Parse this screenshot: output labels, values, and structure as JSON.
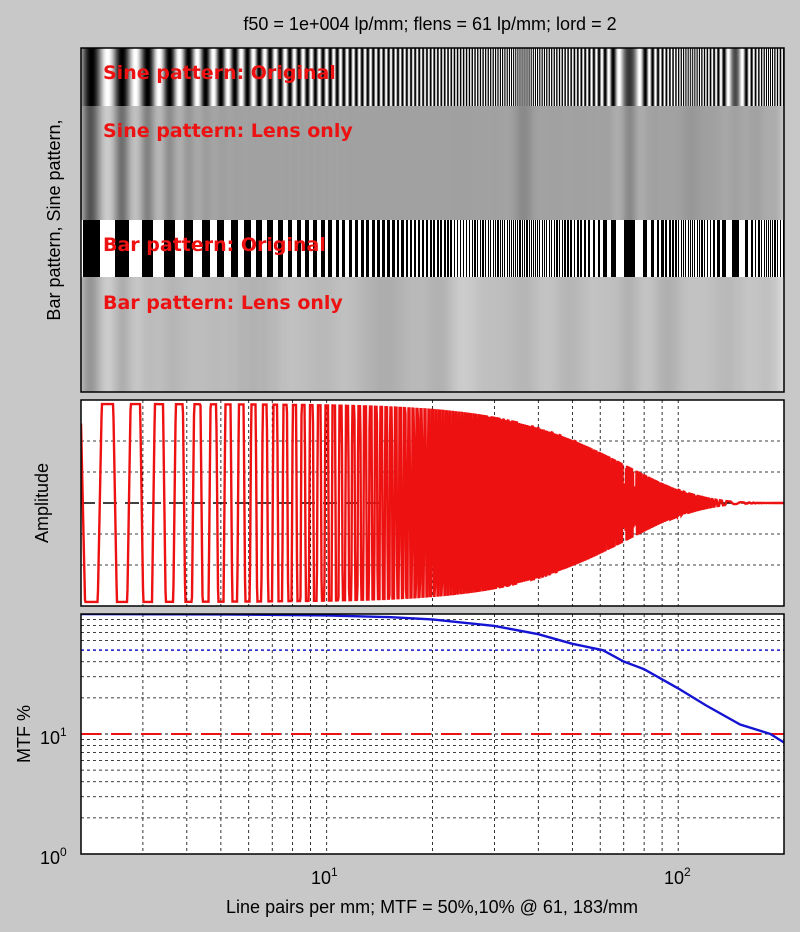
{
  "figure": {
    "title": "f50 = 1e+004 lp/mm; flens = 61 lp/mm; lord = 2"
  },
  "chart_data": [
    {
      "type": "image",
      "ylabel": "Bar pattern, Sine pattern,",
      "strips": [
        {
          "label": "Sine pattern: Original",
          "kind": "sine",
          "filtered": false
        },
        {
          "label": "Sine pattern: Lens only",
          "kind": "sine",
          "filtered": true
        },
        {
          "label": "Bar pattern: Original",
          "kind": "bar",
          "filtered": false
        },
        {
          "label": "Bar pattern: Lens only",
          "kind": "bar",
          "filtered": true
        }
      ],
      "xscale": "log",
      "xlim": [
        2,
        200
      ]
    },
    {
      "type": "line",
      "ylabel": "Amplitude",
      "xscale": "log",
      "xlim": [
        2,
        200
      ],
      "series": [
        {
          "color": "#ee1111",
          "description_kind": "bar-pattern-lens-response"
        }
      ],
      "grid": true
    },
    {
      "type": "line",
      "ylabel": "MTF %",
      "xlabel": "Line pairs per mm;  MTF = 50%,10% @ 61, 183/mm",
      "xscale": "log",
      "yscale": "log",
      "xlim": [
        2,
        200
      ],
      "ylim": [
        1,
        100
      ],
      "x_ticks": [
        {
          "value": 10,
          "label": "10",
          "exp": "1"
        },
        {
          "value": 100,
          "label": "10",
          "exp": "2"
        }
      ],
      "y_ticks": [
        {
          "value": 1,
          "label": "10",
          "exp": "0"
        },
        {
          "value": 10,
          "label": "10",
          "exp": "1"
        }
      ],
      "series": [
        {
          "color": "#1414d2",
          "x": [
            2,
            5,
            10,
            15,
            20,
            30,
            40,
            50,
            61,
            70,
            80,
            100,
            120,
            150,
            183,
            200
          ],
          "y": [
            99.9,
            99.3,
            97.4,
            94.3,
            90.2,
            79.6,
            67.9,
            56.4,
            50,
            40.2,
            34.7,
            24.0,
            17.3,
            12.0,
            10,
            8.5
          ]
        }
      ],
      "hlines": [
        {
          "y": 50,
          "color": "#1414d2",
          "style": "dotted"
        },
        {
          "y": 10,
          "color": "#ee1111",
          "style": "dashed"
        }
      ],
      "grid": true
    }
  ]
}
